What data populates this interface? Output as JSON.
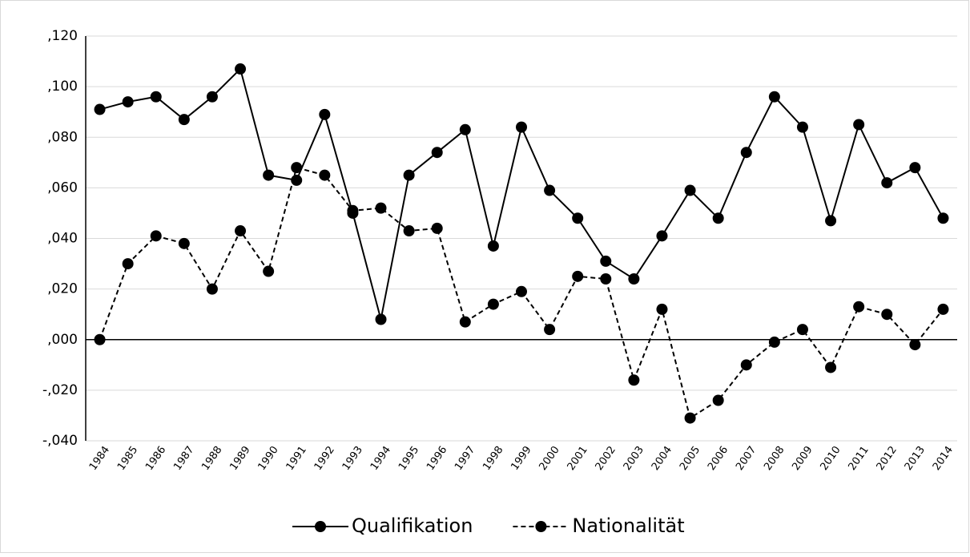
{
  "chart_data": {
    "type": "line",
    "categories": [
      "1984",
      "1985",
      "1986",
      "1987",
      "1988",
      "1989",
      "1990",
      "1991",
      "1992",
      "1993",
      "1994",
      "1995",
      "1996",
      "1997",
      "1998",
      "1999",
      "2000",
      "2001",
      "2002",
      "2003",
      "2004",
      "2005",
      "2006",
      "2007",
      "2008",
      "2009",
      "2010",
      "2011",
      "2012",
      "2013",
      "2014"
    ],
    "series": [
      {
        "name": "Qualifikation",
        "color": "#000000",
        "line_style": "solid",
        "values": [
          0.091,
          0.094,
          0.096,
          0.087,
          0.096,
          0.107,
          0.065,
          0.063,
          0.089,
          0.05,
          0.008,
          0.065,
          0.074,
          0.083,
          0.037,
          0.084,
          0.059,
          0.048,
          0.031,
          0.024,
          0.041,
          0.059,
          0.048,
          0.074,
          0.096,
          0.084,
          0.047,
          0.085,
          0.062,
          0.068,
          0.048
        ]
      },
      {
        "name": "Nationalität",
        "color": "#000000",
        "line_style": "dashed",
        "values": [
          0.0,
          0.03,
          0.041,
          0.038,
          0.02,
          0.043,
          0.027,
          0.068,
          0.065,
          0.051,
          0.052,
          0.043,
          0.044,
          0.007,
          0.014,
          0.019,
          0.004,
          0.025,
          0.024,
          -0.016,
          0.012,
          -0.031,
          -0.024,
          -0.01,
          -0.001,
          0.004,
          -0.011,
          0.013,
          0.01,
          -0.002,
          0.012
        ]
      }
    ],
    "ylim": [
      -0.04,
      0.12
    ],
    "yticks": [
      {
        "value": -0.04,
        "label": "-,040"
      },
      {
        "value": -0.02,
        "label": "-,020"
      },
      {
        "value": 0,
        "label": ",000"
      },
      {
        "value": 0.02,
        "label": ",020"
      },
      {
        "value": 0.04,
        "label": ",040"
      },
      {
        "value": 0.06,
        "label": ",060"
      },
      {
        "value": 0.08,
        "label": ",080"
      },
      {
        "value": 0.1,
        "label": ",100"
      },
      {
        "value": 0.12,
        "label": ",120"
      }
    ],
    "grid": true,
    "legend": "bottom"
  }
}
